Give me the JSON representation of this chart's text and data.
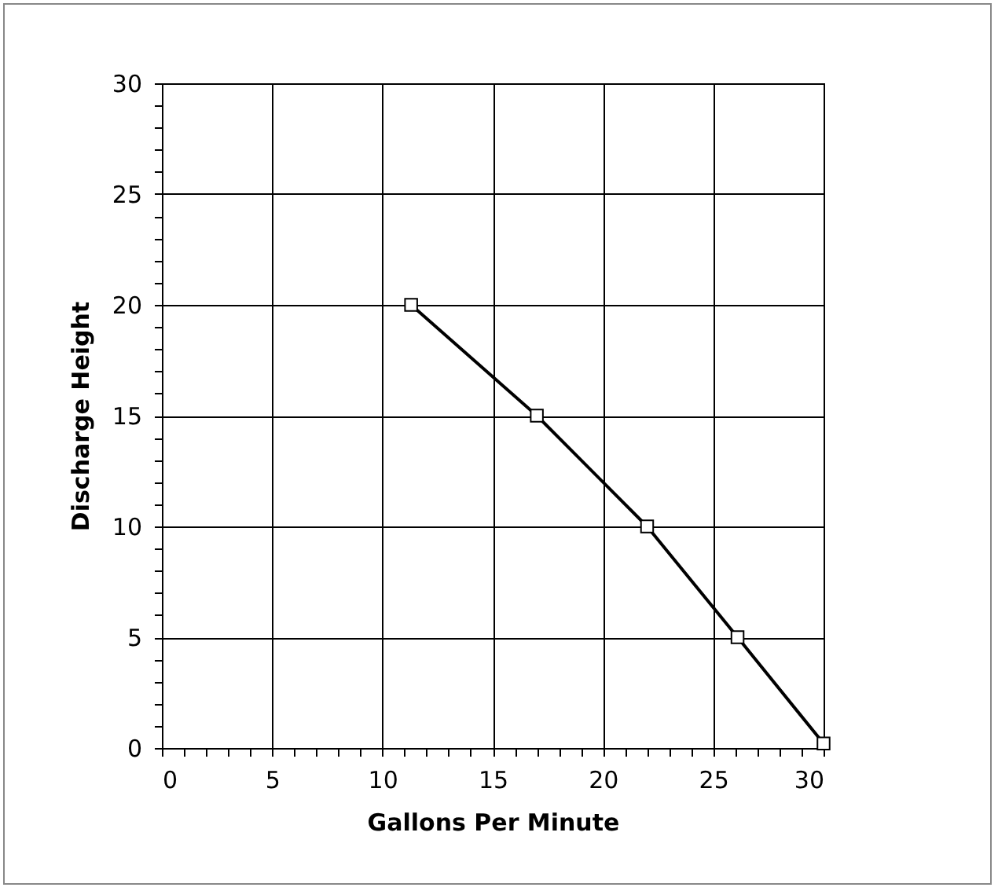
{
  "chart_data": {
    "type": "line",
    "xlabel": "Gallons Per Minute",
    "ylabel": "Discharge Height",
    "x": [
      11.3,
      17.0,
      22.0,
      26.1,
      30.0
    ],
    "series": [
      {
        "color": "#000000",
        "values": [
          20,
          15,
          10,
          5,
          0.2
        ]
      }
    ],
    "xlim": [
      0,
      30
    ],
    "ylim": [
      0,
      30
    ],
    "xticks": [
      0,
      {
        "value": 1,
        "label": null
      },
      {
        "value": 2,
        "label": null
      },
      {
        "value": 3,
        "label": null
      },
      {
        "value": 4,
        "label": null
      },
      5,
      {
        "value": 6,
        "label": null
      },
      {
        "value": 7,
        "label": null
      },
      {
        "value": 8,
        "label": null
      },
      {
        "value": 9,
        "label": null
      },
      10,
      {
        "value": 11,
        "label": null
      },
      {
        "value": 12,
        "label": null
      },
      {
        "value": 13,
        "label": null
      },
      {
        "value": 14,
        "label": null
      },
      15,
      {
        "value": 16,
        "label": null
      },
      {
        "value": 17,
        "label": null
      },
      {
        "value": 18,
        "label": null
      },
      {
        "value": 19,
        "label": null
      },
      20,
      {
        "value": 21,
        "label": null
      },
      {
        "value": 22,
        "label": null
      },
      {
        "value": 23,
        "label": null
      },
      {
        "value": 24,
        "label": null
      },
      25,
      {
        "value": 26,
        "label": null
      },
      {
        "value": 27,
        "label": null
      },
      {
        "value": 28,
        "label": null
      },
      {
        "value": 29,
        "label": null
      },
      30
    ],
    "yticks": [
      0,
      {
        "value": 1,
        "label": null
      },
      {
        "value": 2,
        "label": null
      },
      {
        "value": 3,
        "label": null
      },
      {
        "value": 4,
        "label": null
      },
      5,
      {
        "value": 6,
        "label": null
      },
      {
        "value": 7,
        "label": null
      },
      {
        "value": 8,
        "label": null
      },
      {
        "value": 9,
        "label": null
      },
      10,
      {
        "value": 11,
        "label": null
      },
      {
        "value": 12,
        "label": null
      },
      {
        "value": 13,
        "label": null
      },
      {
        "value": 14,
        "label": null
      },
      15,
      {
        "value": 16,
        "label": null
      },
      {
        "value": 17,
        "label": null
      },
      {
        "value": 18,
        "label": null
      },
      {
        "value": 19,
        "label": null
      },
      20,
      {
        "value": 21,
        "label": null
      },
      {
        "value": 22,
        "label": null
      },
      {
        "value": 23,
        "label": null
      },
      {
        "value": 24,
        "label": null
      },
      25,
      {
        "value": 26,
        "label": null
      },
      {
        "value": 27,
        "label": null
      },
      {
        "value": 28,
        "label": null
      },
      {
        "value": 29,
        "label": null
      },
      30
    ],
    "grid": true,
    "marker": "square",
    "line_style": "solid"
  }
}
